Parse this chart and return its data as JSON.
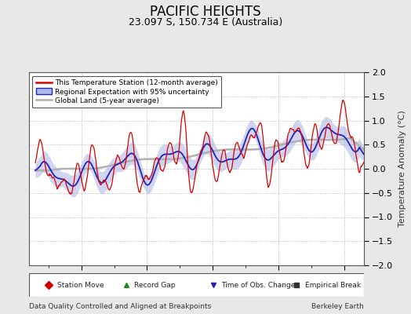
{
  "title": "PACIFIC HEIGHTS",
  "subtitle": "23.097 S, 150.734 E (Australia)",
  "xlabel_left": "Data Quality Controlled and Aligned at Breakpoints",
  "xlabel_right": "Berkeley Earth",
  "ylabel": "Temperature Anomaly (°C)",
  "xlim": [
    1952,
    2003
  ],
  "ylim": [
    -2,
    2
  ],
  "yticks": [
    -2,
    -1.5,
    -1,
    -0.5,
    0,
    0.5,
    1,
    1.5,
    2
  ],
  "xticks": [
    1960,
    1970,
    1980,
    1990,
    2000
  ],
  "background_color": "#e8e8e8",
  "plot_bg_color": "#ffffff",
  "station_color": "#dd0000",
  "regional_color": "#2222bb",
  "regional_fill_color": "#b0b8e8",
  "global_color": "#b0b0b0",
  "legend_entries": [
    "This Temperature Station (12-month average)",
    "Regional Expectation with 95% uncertainty",
    "Global Land (5-year average)"
  ],
  "marker_legend": [
    {
      "label": "Station Move",
      "color": "#cc0000",
      "marker": "D"
    },
    {
      "label": "Record Gap",
      "color": "#228822",
      "marker": "^"
    },
    {
      "label": "Time of Obs. Change",
      "color": "#2222bb",
      "marker": "v"
    },
    {
      "label": "Empirical Break",
      "color": "#333333",
      "marker": "s"
    }
  ],
  "title_fontsize": 12,
  "subtitle_fontsize": 9,
  "axis_fontsize": 8,
  "ylabel_fontsize": 8
}
